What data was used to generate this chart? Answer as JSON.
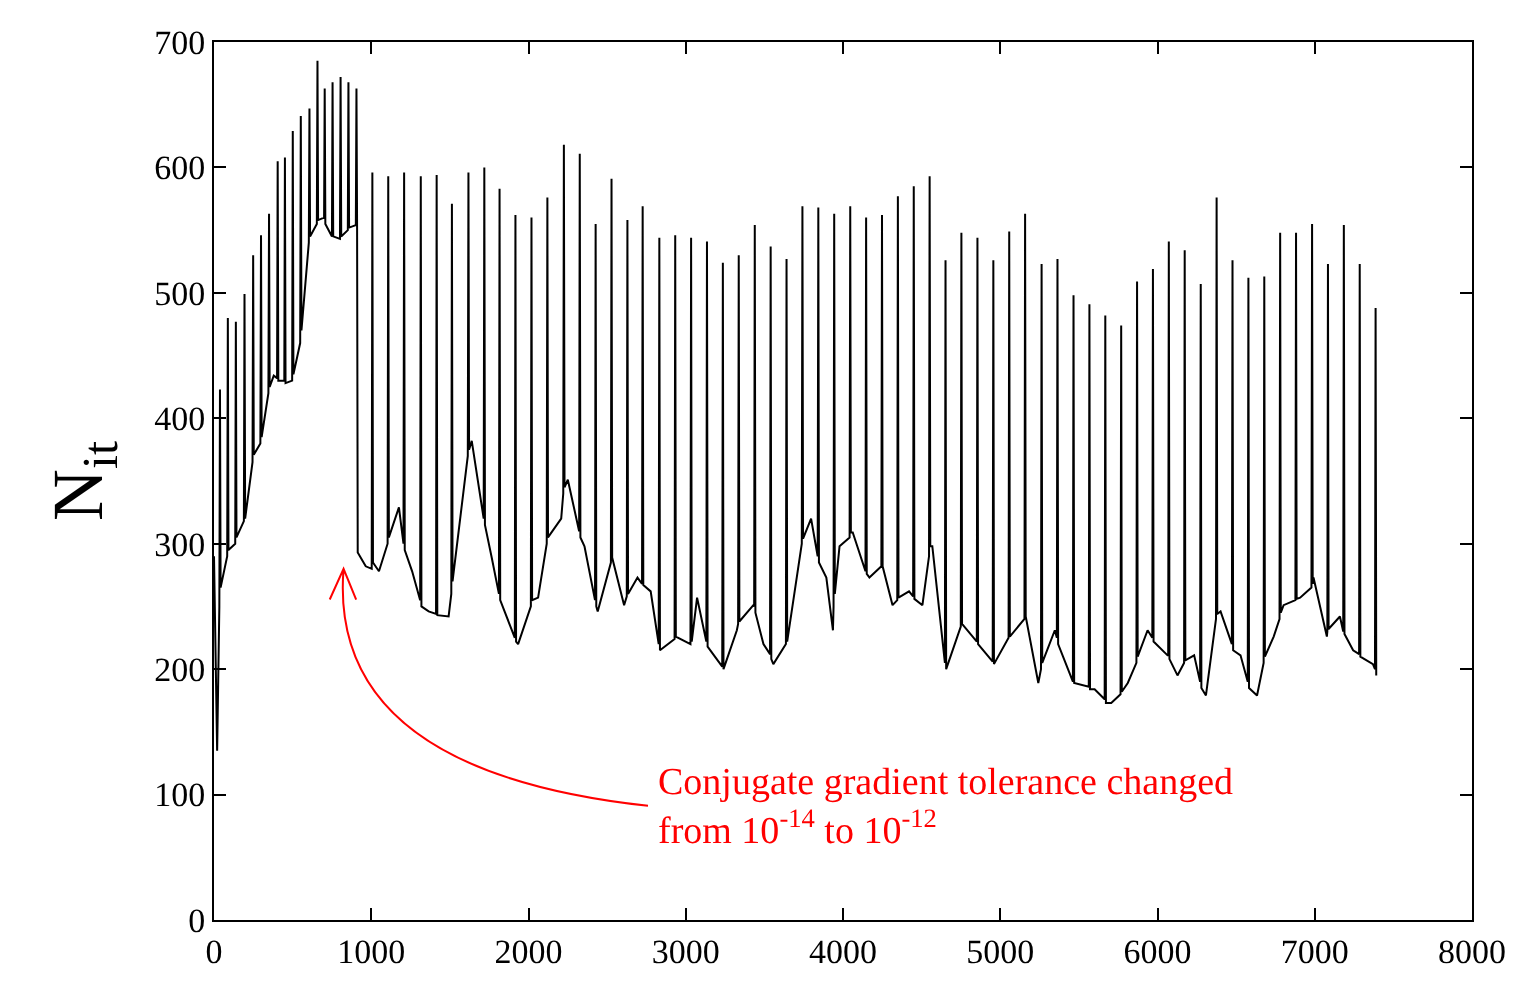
{
  "chart_data": {
    "type": "line",
    "ylabel": "N$_{it}$",
    "xlim": [
      0,
      8000
    ],
    "xticks": [
      0,
      1000,
      2000,
      3000,
      4000,
      5000,
      6000,
      7000,
      8000
    ],
    "ylim": [
      0,
      700
    ],
    "yticks": [
      0,
      100,
      200,
      300,
      400,
      500,
      600,
      700
    ],
    "marker": "none",
    "line_style": "solid",
    "annotations": [
      "Conjugate gradient tolerance changed\nfrom 10$^{-14}$ to 10$^{-12}$"
    ],
    "series": [
      {
        "color": "#000000",
        "x": [
          0,
          20,
          34,
          38,
          42,
          84,
          88,
          92,
          135,
          139,
          143,
          190,
          194,
          198,
          245,
          249,
          253,
          295,
          299,
          303,
          346,
          350,
          354,
          380,
          401,
          405,
          409,
          447,
          451,
          455,
          497,
          501,
          505,
          548,
          552,
          556,
          603,
          607,
          611,
          654,
          658,
          662,
          700,
          704,
          708,
          750,
          754,
          758,
          801,
          805,
          809,
          851,
          855,
          859,
          902,
          906,
          910,
          914,
          965,
          1003,
          1007,
          1011,
          1049,
          1104,
          1108,
          1112,
          1176,
          1205,
          1209,
          1213,
          1260,
          1311,
          1315,
          1319,
          1365,
          1412,
          1416,
          1420,
          1492,
          1509,
          1513,
          1517,
          1614,
          1618,
          1622,
          1639,
          1715,
          1719,
          1723,
          1766,
          1812,
          1816,
          1820,
          1913,
          1917,
          1921,
          1934,
          2015,
          2019,
          2023,
          2061,
          2116,
          2120,
          2124,
          2208,
          2221,
          2225,
          2229,
          2250,
          2322,
          2326,
          2330,
          2356,
          2423,
          2427,
          2431,
          2440,
          2524,
          2528,
          2532,
          2608,
          2625,
          2629,
          2633,
          2693,
          2722,
          2726,
          2730,
          2777,
          2828,
          2832,
          2836,
          2929,
          2933,
          2937,
          3030,
          3034,
          3038,
          3072,
          3131,
          3135,
          3139,
          3232,
          3236,
          3240,
          3325,
          3333,
          3337,
          3341,
          3430,
          3435,
          3439,
          3443,
          3494,
          3536,
          3540,
          3544,
          3557,
          3637,
          3641,
          3645,
          3738,
          3742,
          3746,
          3797,
          3839,
          3843,
          3847,
          3894,
          3936,
          3940,
          3944,
          3948,
          3978,
          4042,
          4046,
          4050,
          4062,
          4143,
          4147,
          4151,
          4168,
          4244,
          4248,
          4252,
          4315,
          4345,
          4349,
          4353,
          4420,
          4446,
          4450,
          4454,
          4505,
          4547,
          4551,
          4555,
          4568,
          4648,
          4652,
          4656,
          4749,
          4753,
          4757,
          4851,
          4855,
          4859,
          4952,
          4956,
          4960,
          5053,
          5057,
          5061,
          5154,
          5158,
          5162,
          5242,
          5259,
          5263,
          5267,
          5347,
          5360,
          5364,
          5368,
          5462,
          5466,
          5470,
          5563,
          5567,
          5571,
          5600,
          5664,
          5668,
          5672,
          5706,
          5765,
          5769,
          5773,
          5811,
          5866,
          5870,
          5874,
          5937,
          5967,
          5971,
          5975,
          6064,
          6068,
          6072,
          6076,
          6127,
          6169,
          6173,
          6177,
          6233,
          6271,
          6275,
          6279,
          6308,
          6372,
          6376,
          6380,
          6401,
          6473,
          6477,
          6481,
          6528,
          6574,
          6578,
          6582,
          6633,
          6675,
          6679,
          6683,
          6739,
          6776,
          6780,
          6784,
          6802,
          6877,
          6881,
          6885,
          6907,
          6979,
          6983,
          6987,
          6992,
          7077,
          7080,
          7084,
          7088,
          7160,
          7181,
          7185,
          7189,
          7244,
          7282,
          7286,
          7290,
          7370,
          7383,
          7387,
          7391
        ],
        "values": [
          290,
          135,
          250,
          423,
          265,
          290,
          480,
          295,
          300,
          477,
          305,
          318,
          499,
          320,
          365,
          530,
          371,
          380,
          546,
          385,
          420,
          563,
          425,
          434,
          432,
          605,
          430,
          430,
          608,
          428,
          430,
          629,
          435,
          460,
          641,
          470,
          540,
          647,
          545,
          555,
          685,
          558,
          560,
          663,
          555,
          545,
          668,
          545,
          543,
          672,
          545,
          550,
          668,
          552,
          554,
          663,
          550,
          293,
          282,
          280,
          596,
          285,
          278,
          300,
          593,
          305,
          329,
          300,
          596,
          295,
          278,
          255,
          593,
          250,
          246,
          244,
          594,
          243,
          242,
          260,
          571,
          270,
          370,
          596,
          375,
          382,
          320,
          600,
          315,
          289,
          260,
          583,
          255,
          225,
          562,
          222,
          220,
          250,
          560,
          255,
          257,
          300,
          576,
          305,
          320,
          340,
          618,
          345,
          351,
          310,
          611,
          305,
          298,
          255,
          555,
          250,
          246,
          285,
          591,
          289,
          251,
          258,
          558,
          260,
          273,
          268,
          569,
          267,
          262,
          220,
          544,
          215,
          224,
          546,
          226,
          220,
          544,
          222,
          257,
          222,
          541,
          218,
          202,
          524,
          200,
          231,
          236,
          530,
          238,
          251,
          250,
          554,
          245,
          220,
          212,
          537,
          208,
          204,
          220,
          527,
          222,
          300,
          569,
          304,
          320,
          290,
          568,
          285,
          273,
          231,
          250,
          563,
          260,
          298,
          305,
          569,
          309,
          309,
          278,
          560,
          276,
          273,
          282,
          562,
          282,
          251,
          255,
          577,
          257,
          262,
          258,
          585,
          256,
          251,
          290,
          593,
          298,
          298,
          205,
          526,
          200,
          234,
          548,
          236,
          222,
          544,
          220,
          206,
          526,
          204,
          225,
          549,
          226,
          240,
          563,
          242,
          189,
          200,
          523,
          205,
          231,
          225,
          527,
          220,
          190,
          498,
          189,
          186,
          491,
          184,
          184,
          176,
          482,
          173,
          173,
          180,
          474,
          182,
          189,
          205,
          509,
          210,
          231,
          225,
          519,
          222,
          211,
          211,
          541,
          208,
          195,
          205,
          534,
          207,
          211,
          190,
          507,
          185,
          179,
          240,
          576,
          244,
          246,
          220,
          526,
          215,
          211,
          190,
          512,
          185,
          179,
          205,
          513,
          210,
          226,
          240,
          548,
          245,
          251,
          255,
          548,
          256,
          257,
          265,
          555,
          268,
          273,
          226,
          230,
          523,
          232,
          242,
          230,
          554,
          228,
          215,
          212,
          523,
          210,
          204,
          200,
          488,
          195
        ]
      }
    ]
  }
}
